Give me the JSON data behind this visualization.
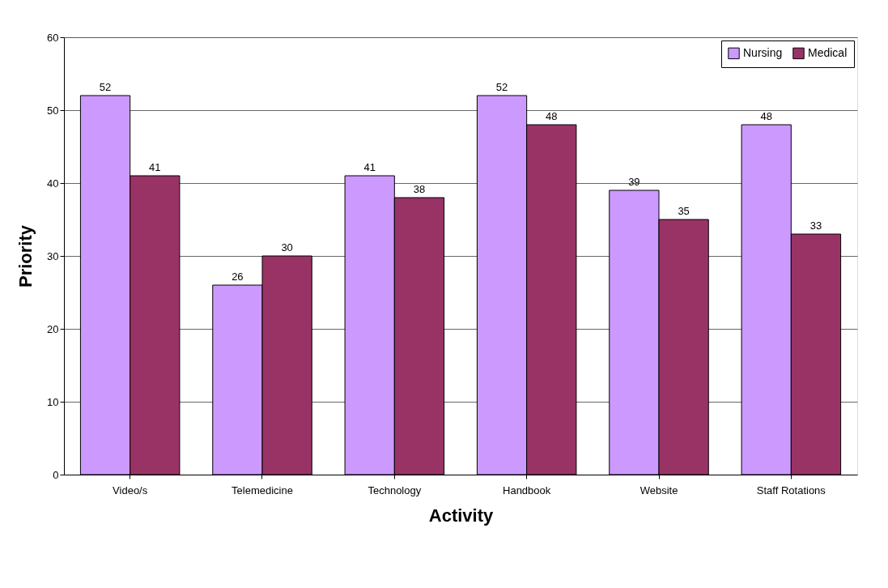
{
  "chart_data": {
    "type": "bar",
    "xlabel": "Activity",
    "ylabel": "Priority",
    "categories": [
      "Video/s",
      "Telemedicine",
      "Technology",
      "Handbook",
      "Website",
      "Staff Rotations"
    ],
    "series": [
      {
        "name": "Nursing",
        "color": "#cc99ff",
        "values": [
          52,
          26,
          41,
          52,
          39,
          48
        ]
      },
      {
        "name": "Medical",
        "color": "#993366",
        "values": [
          41,
          30,
          38,
          48,
          35,
          33
        ]
      }
    ],
    "ylim": [
      0,
      60
    ],
    "yticks": [
      0,
      10,
      20,
      30,
      40,
      50,
      60
    ],
    "grid": "y",
    "legend": "top right",
    "data_labels": true
  }
}
